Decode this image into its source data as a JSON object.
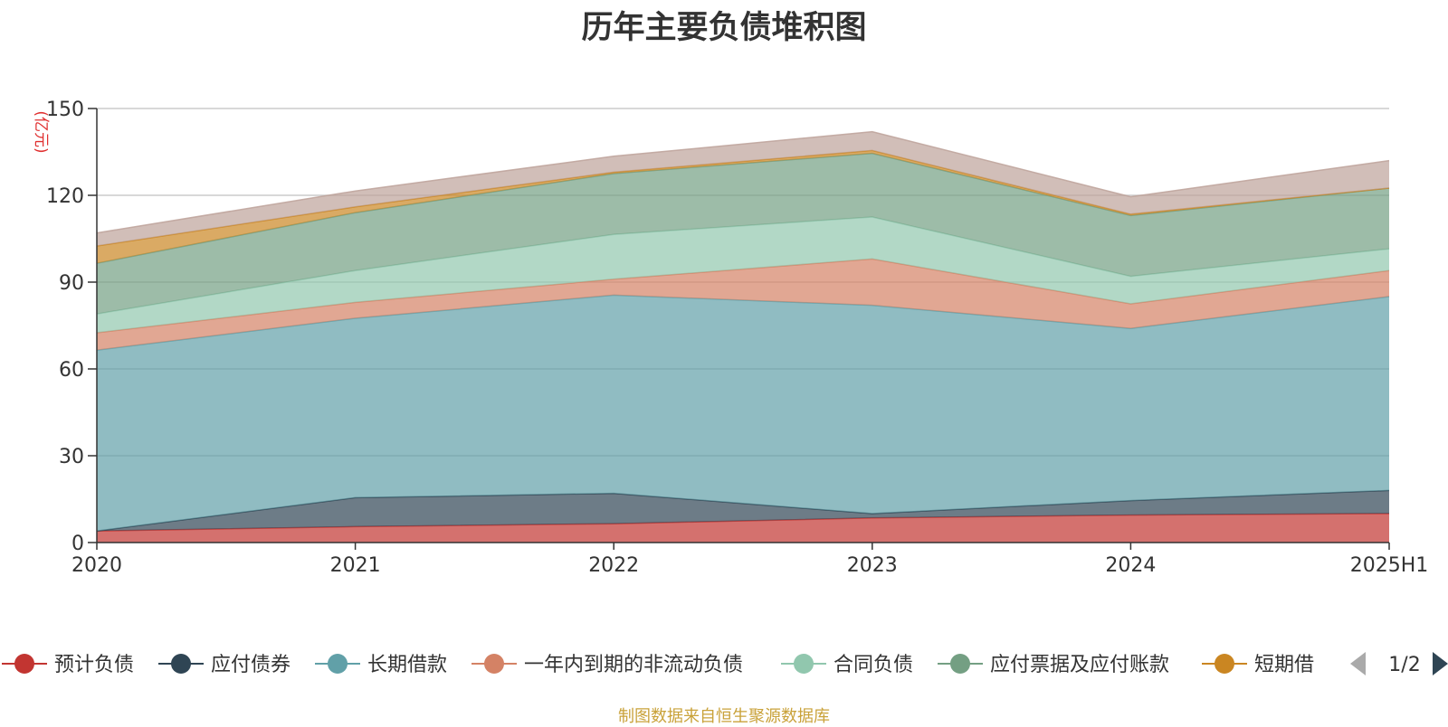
{
  "chart_data": {
    "type": "area",
    "stacked": true,
    "title": "历年主要负债堆积图",
    "y_unit_label": "(亿元)",
    "ylim": [
      0,
      150
    ],
    "yticks": [
      0,
      30,
      60,
      90,
      120,
      150
    ],
    "grid": true,
    "categories": [
      "2020",
      "2021",
      "2022",
      "2023",
      "2024",
      "2025H1"
    ],
    "series": [
      {
        "name": "预计负债",
        "color": "#c23531",
        "values": [
          4.0,
          5.5,
          6.5,
          8.5,
          9.5,
          10.0
        ]
      },
      {
        "name": "应付债券",
        "color": "#2f4554",
        "values": [
          0.0,
          10.0,
          10.5,
          1.5,
          5.0,
          8.0
        ]
      },
      {
        "name": "长期借款",
        "color": "#61a0a8",
        "values": [
          62.5,
          62.0,
          68.5,
          72.0,
          59.5,
          67.0
        ]
      },
      {
        "name": "一年内到期的非流动负债",
        "color": "#d48265",
        "values": [
          6.0,
          5.5,
          5.5,
          16.0,
          8.5,
          9.0
        ]
      },
      {
        "name": "合同负债",
        "color": "#91c7ae",
        "values": [
          6.5,
          11.0,
          15.5,
          14.5,
          9.5,
          7.5
        ]
      },
      {
        "name": "应付票据及应付账款",
        "color": "#749f83",
        "values": [
          17.5,
          20.0,
          21.0,
          22.0,
          21.0,
          21.0
        ]
      },
      {
        "name": "短期借",
        "color": "#ca8622",
        "values": [
          6.0,
          2.0,
          0.5,
          1.0,
          0.5,
          0.0
        ]
      },
      {
        "name": "",
        "color": "#bda29a",
        "values": [
          4.5,
          5.5,
          5.5,
          6.5,
          6.0,
          9.5
        ]
      }
    ],
    "legend": {
      "position": "bottom",
      "page": "1/2",
      "items": [
        "预计负债",
        "应付债券",
        "长期借款",
        "一年内到期的非流动负债",
        "合同负债",
        "应付票据及应付账款",
        "短期借"
      ]
    }
  },
  "source_note": "制图数据来自恒生聚源数据库"
}
